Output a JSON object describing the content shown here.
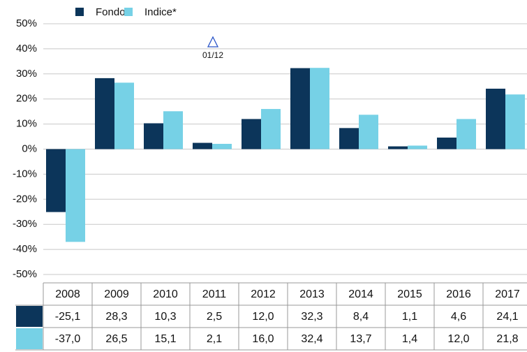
{
  "chart_data": {
    "type": "bar",
    "annotation": "01/12",
    "categories": [
      "2008",
      "2009",
      "2010",
      "2011",
      "2012",
      "2013",
      "2014",
      "2015",
      "2016",
      "2017"
    ],
    "series": [
      {
        "name": "Fondo",
        "color": "#0c355a",
        "values": [
          -25.1,
          28.3,
          10.3,
          2.5,
          12.0,
          32.3,
          8.4,
          1.1,
          4.6,
          24.1
        ],
        "value_labels": [
          "-25,1",
          "28,3",
          "10,3",
          "2,5",
          "12,0",
          "32,3",
          "8,4",
          "1,1",
          "4,6",
          "24,1"
        ]
      },
      {
        "name": "Indice*",
        "color": "#76d1e6",
        "values": [
          -37.0,
          26.5,
          15.1,
          2.1,
          16.0,
          32.4,
          13.7,
          1.4,
          12.0,
          21.8
        ],
        "value_labels": [
          "-37,0",
          "26,5",
          "15,1",
          "2,1",
          "16,0",
          "32,4",
          "13,7",
          "1,4",
          "12,0",
          "21,8"
        ]
      }
    ],
    "ylim": [
      -50,
      50
    ],
    "yticks": [
      {
        "value": -50,
        "label": "-50%"
      },
      {
        "value": -40,
        "label": "-40%"
      },
      {
        "value": -30,
        "label": "-30%"
      },
      {
        "value": -20,
        "label": "-20%"
      },
      {
        "value": -10,
        "label": "-10%"
      },
      {
        "value": 0,
        "label": "0%"
      },
      {
        "value": 10,
        "label": "10%"
      },
      {
        "value": 20,
        "label": "20%"
      },
      {
        "value": 30,
        "label": "30%"
      },
      {
        "value": 40,
        "label": "40%"
      },
      {
        "value": 50,
        "label": "50%"
      }
    ],
    "grid": true
  }
}
